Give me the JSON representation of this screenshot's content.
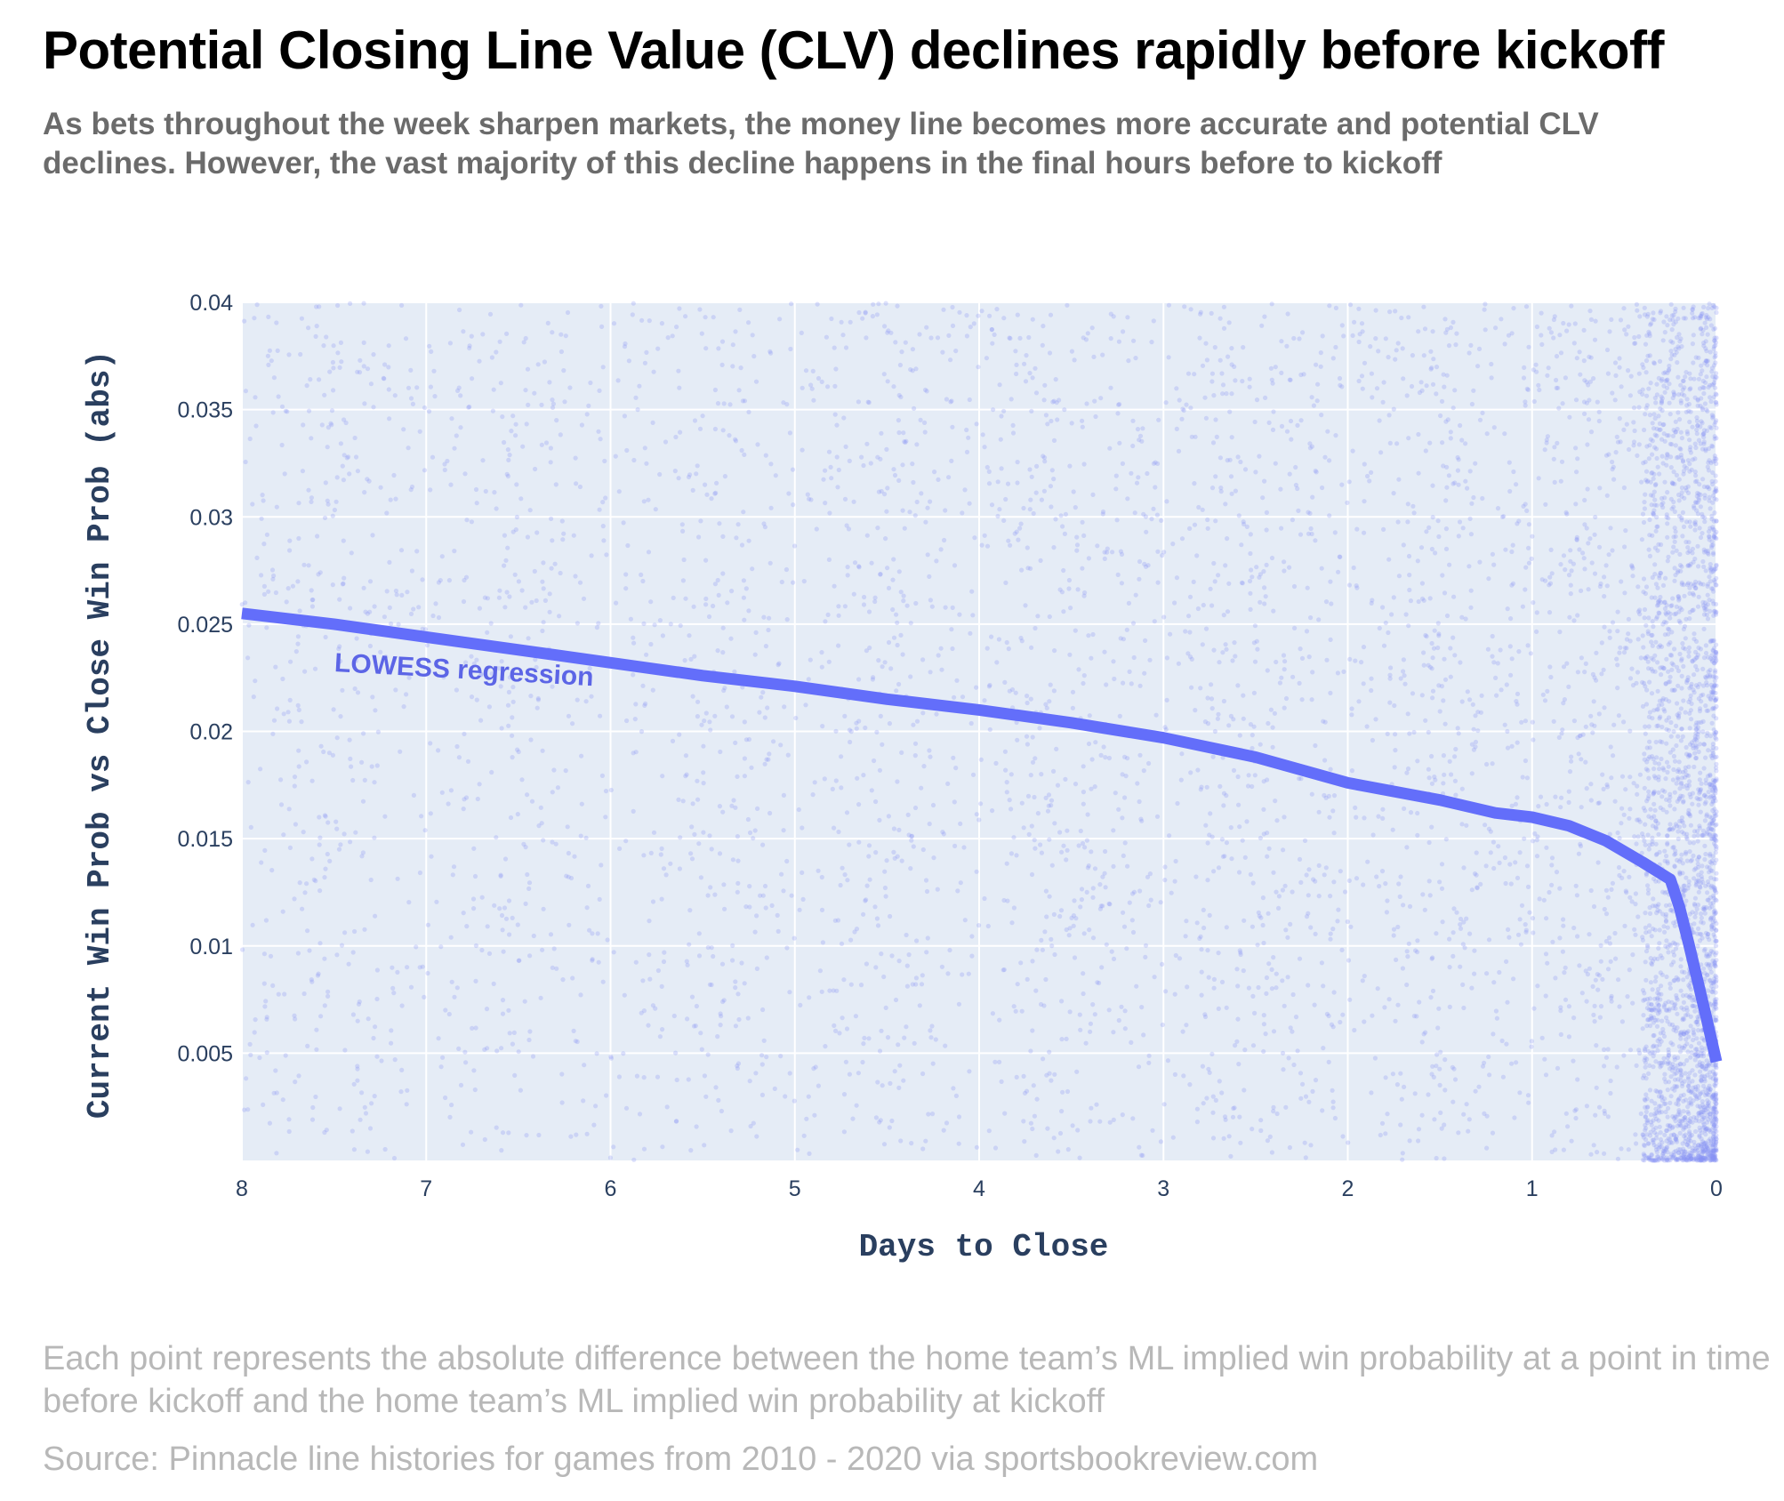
{
  "header": {
    "title": "Potential Closing Line Value (CLV) declines rapidly before kickoff",
    "subtitle": "As bets throughout the week sharpen markets, the money line becomes more accurate and potential CLV declines. However, the vast majority of this decline happens in the final hours before to kickoff"
  },
  "footer": {
    "note": "Each point represents the absolute difference between the home team’s ML implied win probability at a point in time before kickoff and the home team’s ML implied win probability at kickoff",
    "source": "Source: Pinnacle line histories for games from 2010 - 2020 via sportsbookreview.com"
  },
  "colors": {
    "plot_background": "#e5ecf6",
    "grid": "#ffffff",
    "points": "#8a93f5",
    "regression_line": "#636efa",
    "annotation": "#5c65e6",
    "axis_text": "#2a3f5f"
  },
  "chart_data": {
    "type": "scatter",
    "xlabel": "Days to Close",
    "ylabel": "Current Win Prob vs Close Win Prob (abs)",
    "xlim": [
      8,
      0
    ],
    "x_reversed": true,
    "ylim": [
      0,
      0.04
    ],
    "x_ticks": [
      8,
      7,
      6,
      5,
      4,
      3,
      2,
      1,
      0
    ],
    "x_tick_labels": [
      "8",
      "7",
      "6",
      "5",
      "4",
      "3",
      "2",
      "1",
      "0"
    ],
    "y_ticks": [
      0.005,
      0.01,
      0.015,
      0.02,
      0.025,
      0.03,
      0.035,
      0.04
    ],
    "y_tick_labels": [
      "0.005",
      "0.01",
      "0.015",
      "0.02",
      "0.025",
      "0.03",
      "0.035",
      "0.04"
    ],
    "grid": true,
    "series": [
      {
        "name": "LOWESS regression",
        "type": "line",
        "x": [
          8,
          7.5,
          7,
          6.5,
          6,
          5.5,
          5,
          4.5,
          4,
          3.5,
          3,
          2.5,
          2,
          1.5,
          1.2,
          1,
          0.8,
          0.6,
          0.4,
          0.25,
          0.2,
          0.15,
          0.1,
          0.05,
          0
        ],
        "y": [
          0.0255,
          0.025,
          0.0244,
          0.0238,
          0.0232,
          0.0226,
          0.0221,
          0.0215,
          0.021,
          0.0204,
          0.0197,
          0.0188,
          0.0176,
          0.0168,
          0.0162,
          0.016,
          0.0156,
          0.0149,
          0.0139,
          0.0131,
          0.0118,
          0.0101,
          0.0083,
          0.0065,
          0.0046
        ]
      }
    ],
    "scatter_note": "thousands of semi-transparent points spread over the full range, densest near 0 days to close",
    "annotations": [
      {
        "text": "LOWESS regression",
        "x": 7.5,
        "y": 0.0228
      }
    ]
  }
}
